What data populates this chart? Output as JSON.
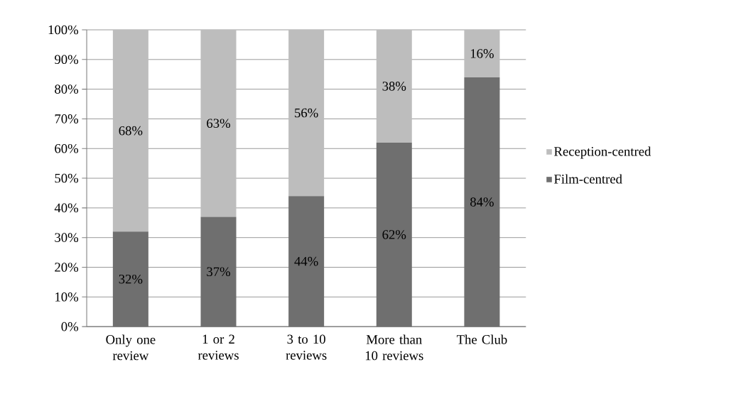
{
  "chart_data": {
    "type": "bar",
    "stacked": true,
    "categories": [
      "Only one review",
      "1 or 2 reviews",
      "3 to 10 reviews",
      "More than 10 reviews",
      "The Club"
    ],
    "series": [
      {
        "name": "Film-centred",
        "color": "#6f6f6f",
        "values": [
          32,
          37,
          44,
          62,
          84
        ],
        "value_labels": [
          "32%",
          "37%",
          "44%",
          "62%",
          "84%"
        ]
      },
      {
        "name": "Reception-centred",
        "color": "#bdbdbd",
        "values": [
          68,
          63,
          56,
          38,
          16
        ],
        "value_labels": [
          "68%",
          "63%",
          "56%",
          "38%",
          "16%"
        ]
      }
    ],
    "ylim": [
      0,
      100
    ],
    "yticks": [
      {
        "value": 0,
        "label": "0%"
      },
      {
        "value": 10,
        "label": "10%"
      },
      {
        "value": 20,
        "label": "20%"
      },
      {
        "value": 30,
        "label": "30%"
      },
      {
        "value": 40,
        "label": "40%"
      },
      {
        "value": 50,
        "label": "50%"
      },
      {
        "value": 60,
        "label": "60%"
      },
      {
        "value": 70,
        "label": "70%"
      },
      {
        "value": 80,
        "label": "80%"
      },
      {
        "value": 90,
        "label": "90%"
      },
      {
        "value": 100,
        "label": "100%"
      }
    ],
    "grid": "y",
    "legend": "right"
  }
}
